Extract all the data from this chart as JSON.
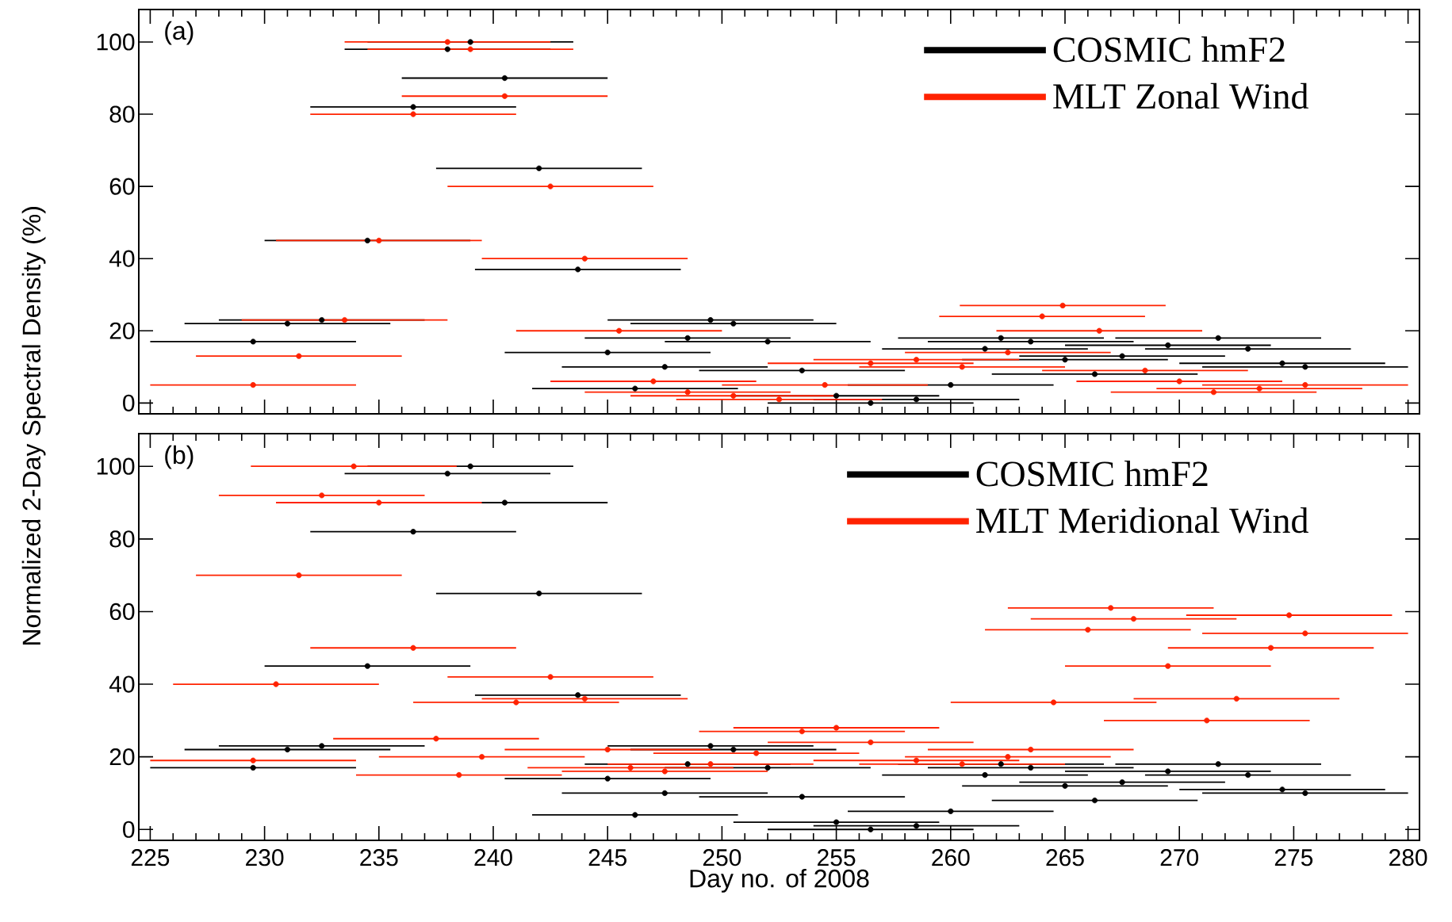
{
  "chart_data": [
    {
      "type": "scatter",
      "marker": "circle",
      "xlim": [
        224.5,
        280.5
      ],
      "ylim": [
        -3,
        109
      ],
      "xticks": [
        225,
        230,
        235,
        240,
        245,
        250,
        255,
        260,
        265,
        270,
        275,
        280
      ],
      "yticks": [
        0,
        20,
        40,
        60,
        80,
        100
      ],
      "tick_labels": "y",
      "ylabel": "Normalized 2-Day Spectral Density (%)",
      "annotations": [
        "(a)"
      ],
      "legend": "top right",
      "grid": false,
      "series": [
        {
          "name": "COSMIC hmF2",
          "color": "#000000",
          "x": [
            229.5,
            231,
            232.5,
            234.5,
            236.5,
            238,
            239,
            240.5,
            242,
            243.7,
            245,
            246.2,
            247.5,
            248.5,
            249.5,
            250.5,
            252,
            253.5,
            255,
            256.5,
            258.5,
            260,
            261.5,
            262.2,
            263.5,
            265,
            266.3,
            267.5,
            269.5,
            271.7,
            273,
            274.5,
            275.5
          ],
          "values": [
            17,
            22,
            23,
            45,
            82,
            98,
            100,
            90,
            65,
            37,
            14,
            4,
            10,
            18,
            23,
            22,
            17,
            9,
            2,
            0,
            1,
            5,
            15,
            18,
            17,
            12,
            8,
            13,
            16,
            18,
            15,
            11,
            10
          ],
          "xerrors": [
            4.5,
            4.5,
            4.5,
            4.5,
            4.5,
            4.5,
            4.5,
            4.5,
            4.5,
            4.5,
            4.5,
            4.5,
            4.5,
            4.5,
            4.5,
            4.5,
            4.5,
            4.5,
            4.5,
            4.5,
            4.5,
            4.5,
            4.5,
            4.5,
            4.5,
            4.5,
            4.5,
            4.5,
            4.5,
            4.5,
            4.5,
            4.5,
            4.5
          ]
        },
        {
          "name": "MLT Zonal Wind",
          "color": "#ff2200",
          "x": [
            229.5,
            231.5,
            233.5,
            235,
            236.5,
            238,
            239,
            240.5,
            242.5,
            244,
            245.5,
            247,
            248.5,
            250.5,
            252.5,
            254.5,
            256.5,
            258.5,
            260.5,
            262.5,
            264,
            264.9,
            266.5,
            268.5,
            270,
            271.5,
            273.5,
            275.5
          ],
          "values": [
            5,
            13,
            23,
            45,
            80,
            100,
            98,
            85,
            60,
            40,
            20,
            6,
            3,
            2,
            1,
            5,
            11,
            12,
            10,
            14,
            24,
            27,
            20,
            9,
            6,
            3,
            4,
            5
          ],
          "xerrors": [
            4.5,
            4.5,
            4.5,
            4.5,
            4.5,
            4.5,
            4.5,
            4.5,
            4.5,
            4.5,
            4.5,
            4.5,
            4.5,
            4.5,
            4.5,
            4.5,
            4.5,
            4.5,
            4.5,
            4.5,
            4.5,
            4.5,
            4.5,
            4.5,
            4.5,
            4.5,
            4.5,
            4.5
          ]
        }
      ]
    },
    {
      "type": "scatter",
      "marker": "circle",
      "xlim": [
        224.5,
        280.5
      ],
      "ylim": [
        -3,
        109
      ],
      "xticks": [
        225,
        230,
        235,
        240,
        245,
        250,
        255,
        260,
        265,
        270,
        275,
        280
      ],
      "yticks": [
        0,
        20,
        40,
        60,
        80,
        100
      ],
      "xlabel": "Day no. of 2008",
      "annotations": [
        "(b)"
      ],
      "legend": "top right",
      "grid": false,
      "series": [
        {
          "name": "COSMIC hmF2",
          "color": "#000000",
          "x": [
            229.5,
            231,
            232.5,
            234.5,
            236.5,
            238,
            239,
            240.5,
            242,
            243.7,
            245,
            246.2,
            247.5,
            248.5,
            249.5,
            250.5,
            252,
            253.5,
            255,
            256.5,
            258.5,
            260,
            261.5,
            262.2,
            263.5,
            265,
            266.3,
            267.5,
            269.5,
            271.7,
            273,
            274.5,
            275.5
          ],
          "values": [
            17,
            22,
            23,
            45,
            82,
            98,
            100,
            90,
            65,
            37,
            14,
            4,
            10,
            18,
            23,
            22,
            17,
            9,
            2,
            0,
            1,
            5,
            15,
            18,
            17,
            12,
            8,
            13,
            16,
            18,
            15,
            11,
            10
          ],
          "xerrors": [
            4.5,
            4.5,
            4.5,
            4.5,
            4.5,
            4.5,
            4.5,
            4.5,
            4.5,
            4.5,
            4.5,
            4.5,
            4.5,
            4.5,
            4.5,
            4.5,
            4.5,
            4.5,
            4.5,
            4.5,
            4.5,
            4.5,
            4.5,
            4.5,
            4.5,
            4.5,
            4.5,
            4.5,
            4.5,
            4.5,
            4.5,
            4.5,
            4.5
          ]
        },
        {
          "name": "MLT Meridional Wind",
          "color": "#ff2200",
          "x": [
            229.5,
            230.5,
            231.5,
            232.5,
            233.9,
            235,
            236.5,
            237.5,
            238.5,
            239.5,
            241,
            242.5,
            244,
            245,
            246,
            247.5,
            249.5,
            251.5,
            253.5,
            255,
            256.5,
            258.5,
            260.5,
            262.5,
            263.5,
            264.5,
            266,
            267,
            268,
            269.5,
            271.2,
            272.5,
            274,
            274.8,
            275.5
          ],
          "values": [
            19,
            40,
            70,
            92,
            100,
            90,
            50,
            25,
            15,
            20,
            35,
            42,
            36,
            22,
            17,
            16,
            18,
            21,
            27,
            28,
            24,
            19,
            18,
            20,
            22,
            35,
            55,
            61,
            58,
            45,
            30,
            36,
            50,
            59,
            54
          ],
          "xerrors": [
            4.5,
            4.5,
            4.5,
            4.5,
            4.5,
            4.5,
            4.5,
            4.5,
            4.5,
            4.5,
            4.5,
            4.5,
            4.5,
            4.5,
            4.5,
            4.5,
            4.5,
            4.5,
            4.5,
            4.5,
            4.5,
            4.5,
            4.5,
            4.5,
            4.5,
            4.5,
            4.5,
            4.5,
            4.5,
            4.5,
            4.5,
            4.5,
            4.5,
            4.5,
            4.5
          ]
        }
      ]
    }
  ]
}
